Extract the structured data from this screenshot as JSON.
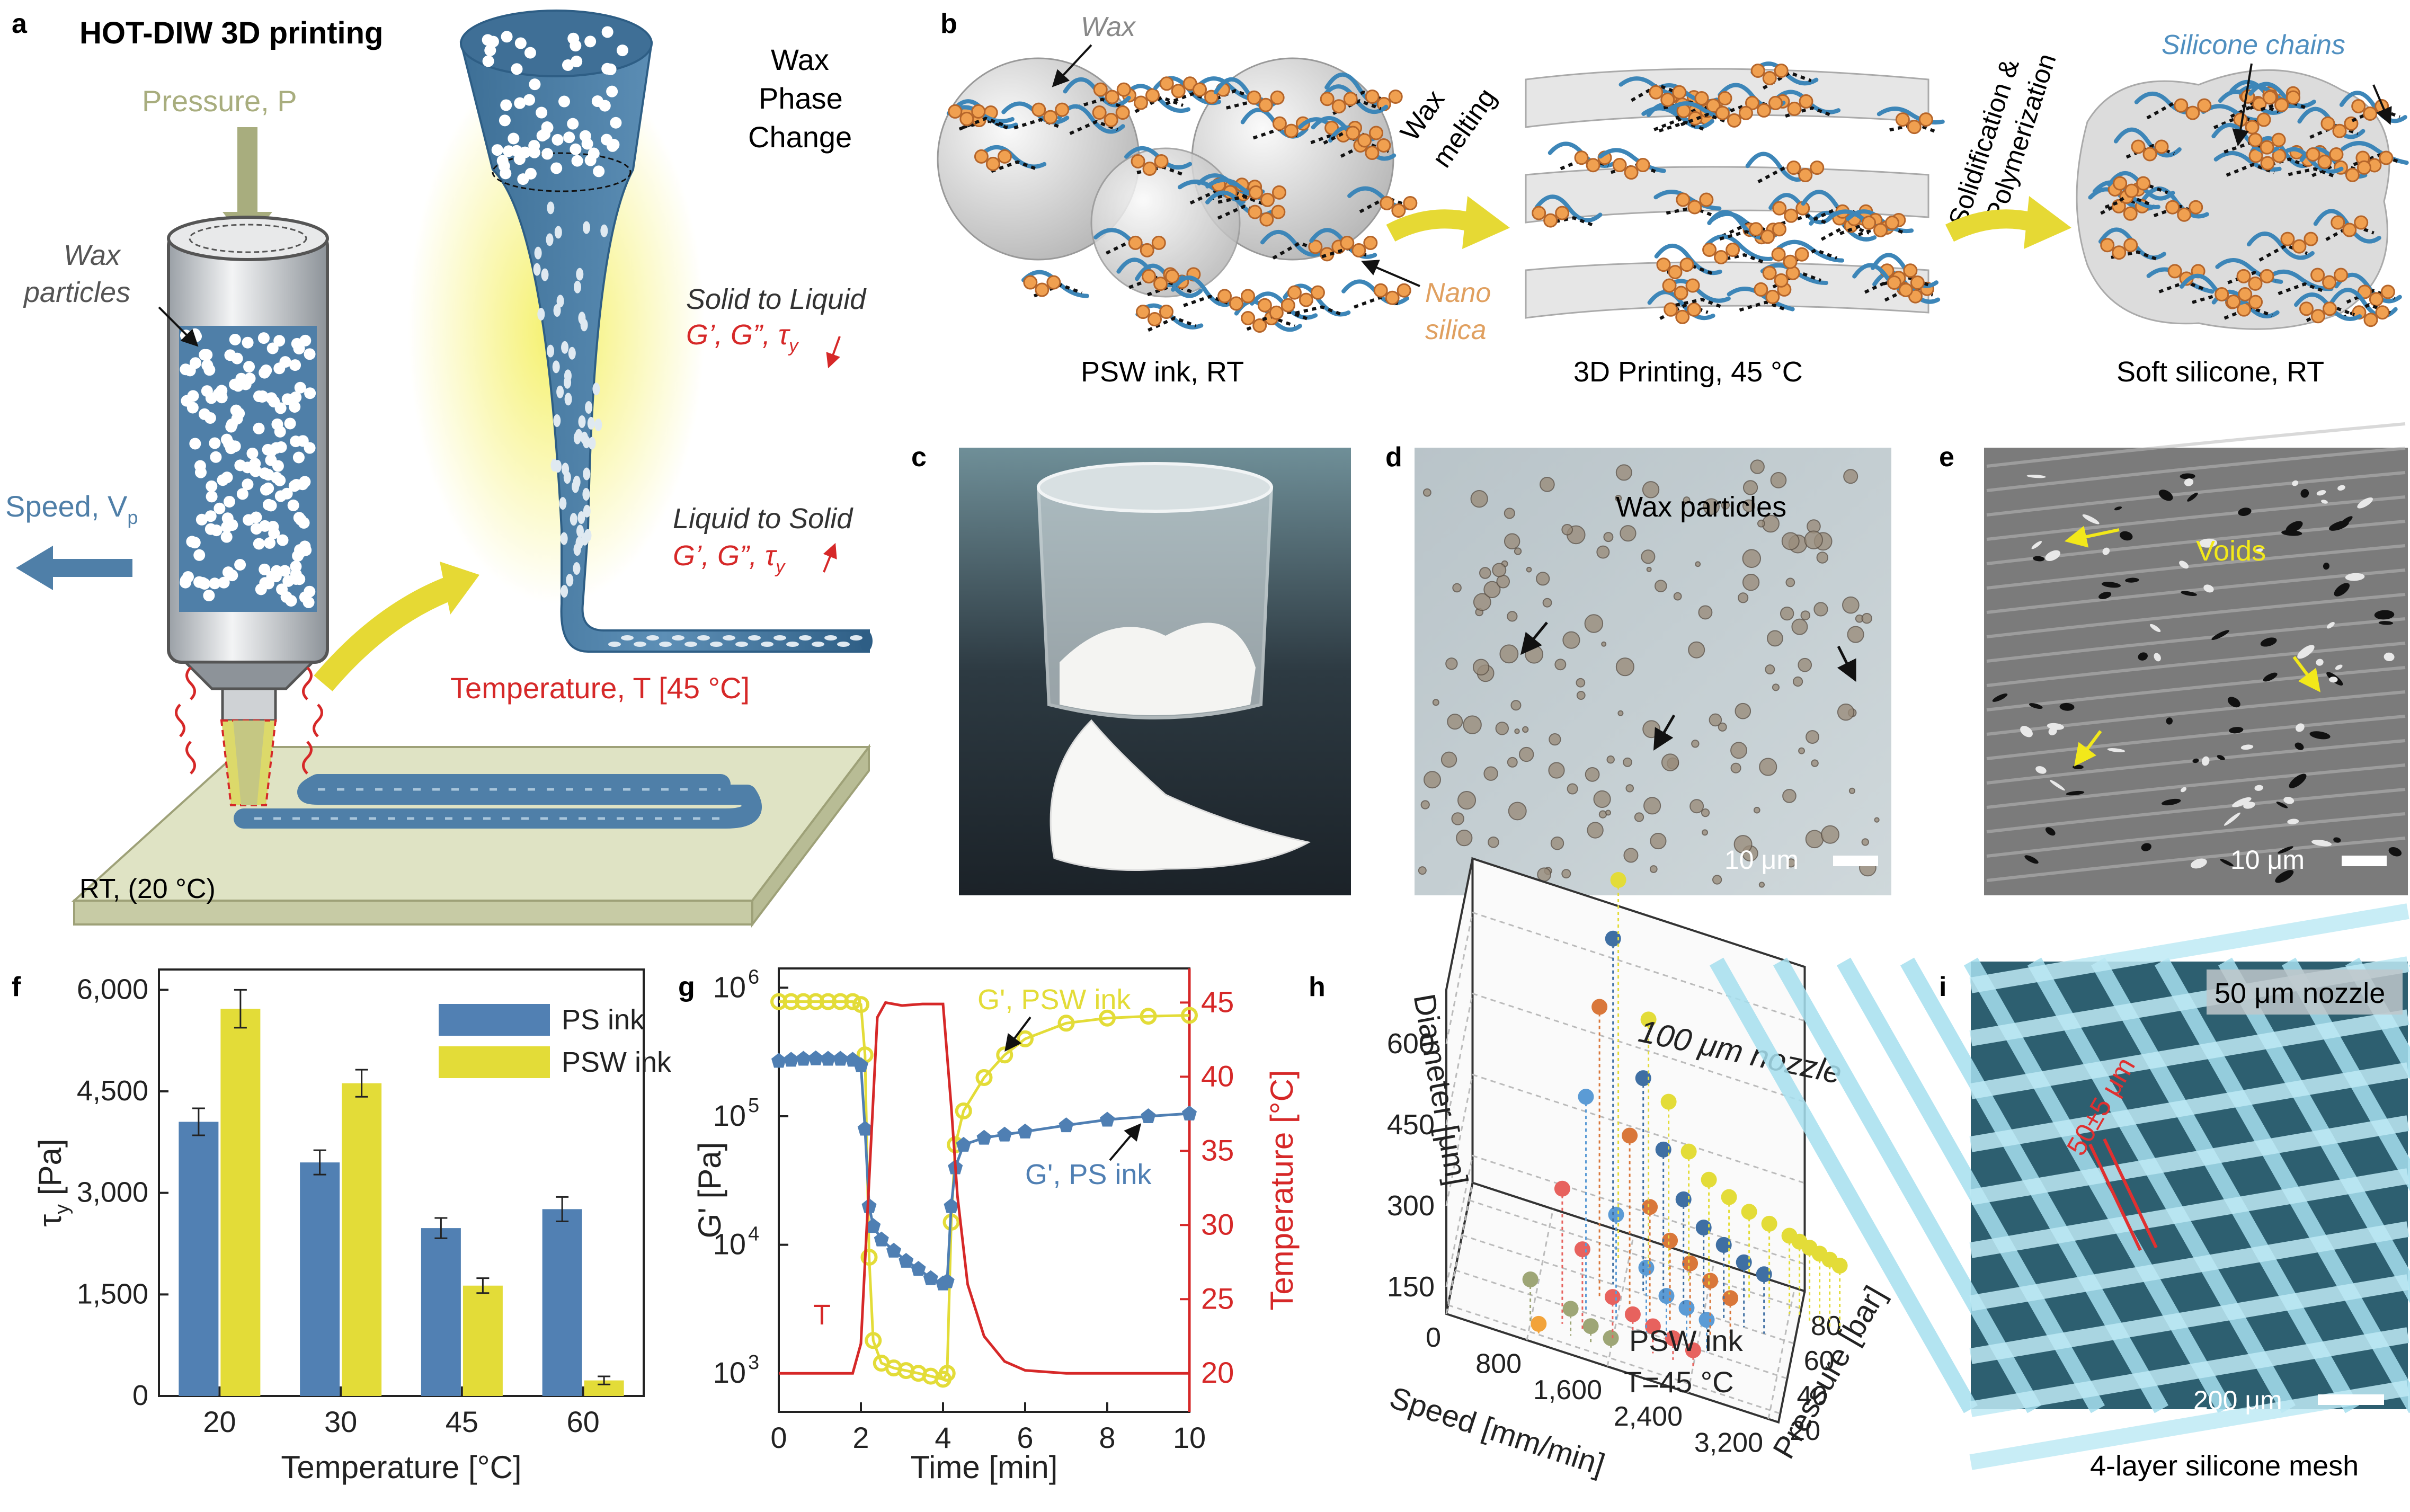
{
  "panel_letters": {
    "a": "a",
    "b": "b",
    "c": "c",
    "d": "d",
    "e": "e",
    "f": "f",
    "g": "g",
    "h": "h",
    "i": "i"
  },
  "panel_a": {
    "title": "HOT-DIW 3D printing",
    "pressure": "Pressure, P",
    "wax_particles_1": "Wax",
    "wax_particles_2": "particles",
    "speed": "Speed, V",
    "speed_sub": "p",
    "phase_1": "Wax",
    "phase_2": "Phase",
    "phase_3": "Change",
    "solid_liquid": "Solid to Liquid",
    "liquid_solid": "Liquid to Solid",
    "moduli": "G’, G”, τ",
    "moduli_sub": "y",
    "temperature": "Temperature, T [45 °C]",
    "rt": "RT, (20 °C)",
    "colors": {
      "steel_blue": "#4f7fa8",
      "yellow": "#e6d934",
      "red": "#d62828",
      "olive": "#a8ad7e"
    }
  },
  "panel_b": {
    "wax": "Wax",
    "nano_1": "Nano",
    "nano_2": "silica",
    "wax_melting_1": "Wax",
    "wax_melting_2": "melting",
    "solidification_1": "Solidification &",
    "solidification_2": "Polymerization",
    "silicone_chains": "Silicone chains",
    "caption_1": "PSW ink, RT",
    "caption_2": "3D Printing, 45 °C",
    "caption_3": "Soft silicone, RT"
  },
  "panel_d": {
    "label": "Wax particles",
    "scale": "10 μm"
  },
  "panel_e": {
    "label": "Voids",
    "scale": "10 μm"
  },
  "panel_i": {
    "label": "50 μm nozzle",
    "width": "50±5 μm",
    "scale": "200 μm",
    "caption": "4-layer silicone mesh"
  },
  "chart_data": [
    {
      "id": "f",
      "type": "bar",
      "categories": [
        "20",
        "30",
        "45",
        "60"
      ],
      "series": [
        {
          "name": "PS ink",
          "values": [
            4050,
            3450,
            2480,
            2760
          ],
          "errors": [
            200,
            180,
            150,
            180
          ],
          "color": "#5180b3"
        },
        {
          "name": "PSW ink",
          "values": [
            5720,
            4620,
            1630,
            230
          ],
          "errors": [
            280,
            200,
            110,
            60
          ],
          "color": "#e3dc38"
        }
      ],
      "xlabel": "Temperature [°C]",
      "ylabel": "τ",
      "ylabel_sub": "y",
      "ylabel_unit": " [Pa]",
      "ylim": [
        0,
        6300
      ],
      "yticks": [
        0,
        1500,
        3000,
        4500,
        6000
      ],
      "ytick_labels": [
        "0",
        "1,500",
        "3,000",
        "4,500",
        "6,000"
      ],
      "legend": "top-right"
    },
    {
      "id": "g",
      "type": "line",
      "xlabel": "Time [min]",
      "ylabel": "G' [Pa]",
      "y2label": "Temperature [°C]",
      "xlim": [
        0,
        10
      ],
      "xticks": [
        0,
        2,
        4,
        6,
        8,
        10
      ],
      "ylim_log10": [
        2.7,
        6.15
      ],
      "yticks_log10": [
        3,
        4,
        5,
        6
      ],
      "ytick_labels": [
        "10",
        "10",
        "10",
        "10"
      ],
      "ytick_exps": [
        "3",
        "4",
        "5",
        "6"
      ],
      "y2lim": [
        17.4,
        47.3
      ],
      "y2ticks": [
        20,
        25,
        30,
        35,
        40,
        45
      ],
      "series": [
        {
          "name": "G', PSW ink",
          "color": "#e3dc38",
          "x": [
            0,
            0.3,
            0.6,
            0.9,
            1.2,
            1.5,
            1.8,
            2.0,
            2.1,
            2.2,
            2.3,
            2.5,
            2.8,
            3.1,
            3.4,
            3.7,
            4.0,
            4.1,
            4.2,
            4.3,
            4.5,
            5.0,
            5.5,
            6.0,
            7.0,
            8.0,
            9.0,
            10.0
          ],
          "y": [
            780000,
            780000,
            780000,
            780000,
            780000,
            780000,
            780000,
            740000,
            300000,
            8000,
            1800,
            1200,
            1100,
            1050,
            1000,
            950,
            900,
            1000,
            15000,
            60000,
            110000,
            200000,
            300000,
            400000,
            530000,
            580000,
            600000,
            610000
          ]
        },
        {
          "name": "G', PS ink",
          "color": "#4f7fb3",
          "x": [
            0,
            0.3,
            0.6,
            0.9,
            1.2,
            1.5,
            1.8,
            2.0,
            2.1,
            2.2,
            2.3,
            2.5,
            2.8,
            3.1,
            3.4,
            3.7,
            4.0,
            4.1,
            4.2,
            4.3,
            4.5,
            5.0,
            5.5,
            6.0,
            7.0,
            8.0,
            9.0,
            10.0
          ],
          "y": [
            270000,
            275000,
            280000,
            282000,
            280000,
            280000,
            275000,
            250000,
            80000,
            20000,
            14000,
            11000,
            9000,
            7500,
            6500,
            5500,
            5000,
            5200,
            20000,
            40000,
            60000,
            68000,
            72000,
            76000,
            85000,
            94000,
            100000,
            105000
          ]
        },
        {
          "name": "T",
          "axis": "right",
          "color": "#d62828",
          "x": [
            0,
            1.8,
            2.0,
            2.2,
            2.4,
            2.6,
            3.0,
            3.5,
            4.0,
            4.2,
            4.35,
            4.6,
            5.0,
            5.5,
            6.0,
            7.0,
            8.0,
            9.0,
            10.0
          ],
          "y": [
            20,
            20,
            22,
            33,
            44,
            45,
            44.8,
            44.9,
            44.9,
            38,
            32,
            26,
            22.5,
            20.8,
            20.2,
            20,
            20,
            20,
            20
          ]
        }
      ],
      "annotations": [
        "G', PSW ink",
        "G', PS ink",
        "T"
      ]
    },
    {
      "id": "h",
      "type": "scatter",
      "title": "100 μm nozzle",
      "note_1": "PSW ink",
      "note_2": "T=45 °C",
      "xlabel": "Speed [mm/min]",
      "ylabel": "Diameter [μm]",
      "zlabel": "Pressure [bar]",
      "xticks": [
        0,
        800,
        1600,
        2400,
        3200
      ],
      "xtick_labels": [
        "0",
        "800",
        "1,600",
        "2,400",
        "3,200"
      ],
      "zticks": [
        20,
        40,
        60,
        80
      ],
      "yticks": [
        150,
        300,
        450,
        600
      ],
      "xlim": [
        0,
        3300
      ],
      "zlim": [
        15,
        90
      ],
      "ylim": [
        100,
        700
      ],
      "series": [
        {
          "color": "#f2a33a",
          "speed": [
            900
          ],
          "pressure": [
            20
          ],
          "diameter": [
            120
          ]
        },
        {
          "color": "#9ea676",
          "speed": [
            800,
            1200,
            1400,
            1600
          ],
          "pressure": [
            25,
            25,
            25,
            25
          ],
          "diameter": [
            180,
            150,
            130,
            120
          ]
        },
        {
          "color": "#e7625e",
          "speed": [
            1100,
            1300,
            1600,
            1800,
            2000,
            2200,
            2400
          ],
          "pressure": [
            30,
            30,
            30,
            30,
            30,
            30,
            30
          ],
          "diameter": [
            350,
            250,
            180,
            160,
            150,
            140,
            130
          ]
        },
        {
          "color": "#5b9bd5",
          "speed": [
            1300,
            1600,
            1900,
            2100,
            2300,
            2500
          ],
          "pressure": [
            40,
            40,
            40,
            40,
            40,
            40
          ],
          "diameter": [
            500,
            300,
            220,
            180,
            170,
            160
          ]
        },
        {
          "color": "#d9773a",
          "speed": [
            1400,
            1700,
            1900,
            2100,
            2300,
            2500,
            2700
          ],
          "pressure": [
            50,
            50,
            50,
            50,
            50,
            50,
            50
          ],
          "diameter": [
            640,
            420,
            300,
            250,
            220,
            200,
            180
          ]
        },
        {
          "color": "#3f6fa3",
          "speed": [
            1500,
            1800,
            2000,
            2200,
            2400,
            2600,
            2800,
            3000
          ],
          "pressure": [
            60,
            60,
            60,
            60,
            60,
            60,
            60,
            60
          ],
          "diameter": [
            740,
            500,
            380,
            300,
            260,
            240,
            220,
            210
          ]
        },
        {
          "color": "#e3dc38",
          "speed": [
            1500,
            1800,
            2000,
            2200,
            2400,
            2600,
            2800,
            3000,
            3200,
            3300,
            3400,
            3500,
            3600,
            3700
          ],
          "pressure": [
            75,
            75,
            75,
            75,
            75,
            75,
            75,
            75,
            75,
            75,
            75,
            75,
            75,
            75
          ],
          "diameter": [
            800,
            560,
            420,
            340,
            300,
            280,
            265,
            255,
            245,
            240,
            235,
            230,
            225,
            220
          ]
        }
      ]
    }
  ]
}
